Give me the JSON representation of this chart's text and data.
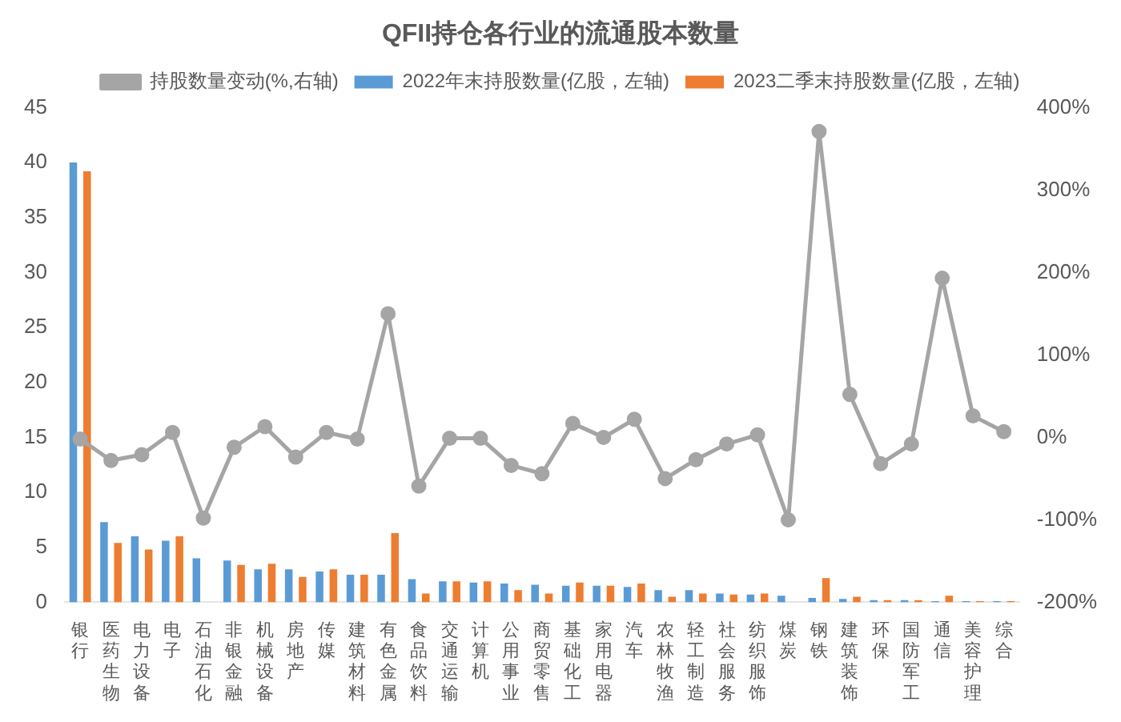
{
  "chart_data": {
    "type": "bar",
    "title": "QFII持仓各行业的流通股本数量",
    "categories": [
      "银行",
      "医药生物",
      "电力设备",
      "电子",
      "石油石化",
      "非银金融",
      "机械设备",
      "房地产",
      "传媒",
      "建筑材料",
      "有色金属",
      "食品饮料",
      "交通运输",
      "计算机",
      "公用事业",
      "商贸零售",
      "基础化工",
      "家用电器",
      "汽车",
      "农林牧渔",
      "轻工制造",
      "社会服务",
      "纺织服饰",
      "煤炭",
      "钢铁",
      "建筑装饰",
      "环保",
      "国防军工",
      "通信",
      "美容护理",
      "综合"
    ],
    "series": [
      {
        "name": "2022年末持股数量(亿股，左轴)",
        "color": "#5b9bd5",
        "values": [
          40,
          7.3,
          6.0,
          5.6,
          4.0,
          3.8,
          3.0,
          3.0,
          2.8,
          2.5,
          2.5,
          2.1,
          1.9,
          1.8,
          1.7,
          1.6,
          1.5,
          1.5,
          1.4,
          1.1,
          1.1,
          0.8,
          0.7,
          0.6,
          0.4,
          0.3,
          0.2,
          0.2,
          0.1,
          0.1,
          0.1
        ]
      },
      {
        "name": "2023二季末持股数量(亿股，左轴)",
        "color": "#ed7d31",
        "values": [
          39.2,
          5.4,
          4.8,
          6.0,
          0,
          3.4,
          3.5,
          2.3,
          3.0,
          2.5,
          6.3,
          0.8,
          1.9,
          1.9,
          1.1,
          0.8,
          1.8,
          1.5,
          1.7,
          0.5,
          0.8,
          0.7,
          0.8,
          0,
          2.2,
          0.5,
          0.2,
          0.2,
          0.6,
          0.1,
          0.1
        ]
      },
      {
        "name": "持股数量变动(%,右轴)",
        "type": "line",
        "axis": "y2",
        "color": "#a5a5a5",
        "values": [
          -2,
          -28,
          -21,
          6,
          -98,
          -12,
          13,
          -24,
          6,
          -2,
          150,
          -59,
          -1,
          -1,
          -34,
          -44,
          17,
          0,
          22,
          -50,
          -27,
          -8,
          3,
          -100,
          371,
          52,
          -32,
          -8,
          193,
          26,
          7
        ]
      }
    ],
    "ylim": [
      0,
      45
    ],
    "yticks": [
      0,
      5,
      10,
      15,
      20,
      25,
      30,
      35,
      40,
      45
    ],
    "y2lim": [
      -200,
      400
    ],
    "y2ticks": [
      {
        "value": -200,
        "label": "-200%"
      },
      {
        "value": -100,
        "label": "-100%"
      },
      {
        "value": 0,
        "label": "0%"
      },
      {
        "value": 100,
        "label": "100%"
      },
      {
        "value": 200,
        "label": "200%"
      },
      {
        "value": 300,
        "label": "300%"
      },
      {
        "value": 400,
        "label": "400%"
      }
    ],
    "legend": "top",
    "grid": false,
    "marker": "circle",
    "line_style": "solid"
  }
}
